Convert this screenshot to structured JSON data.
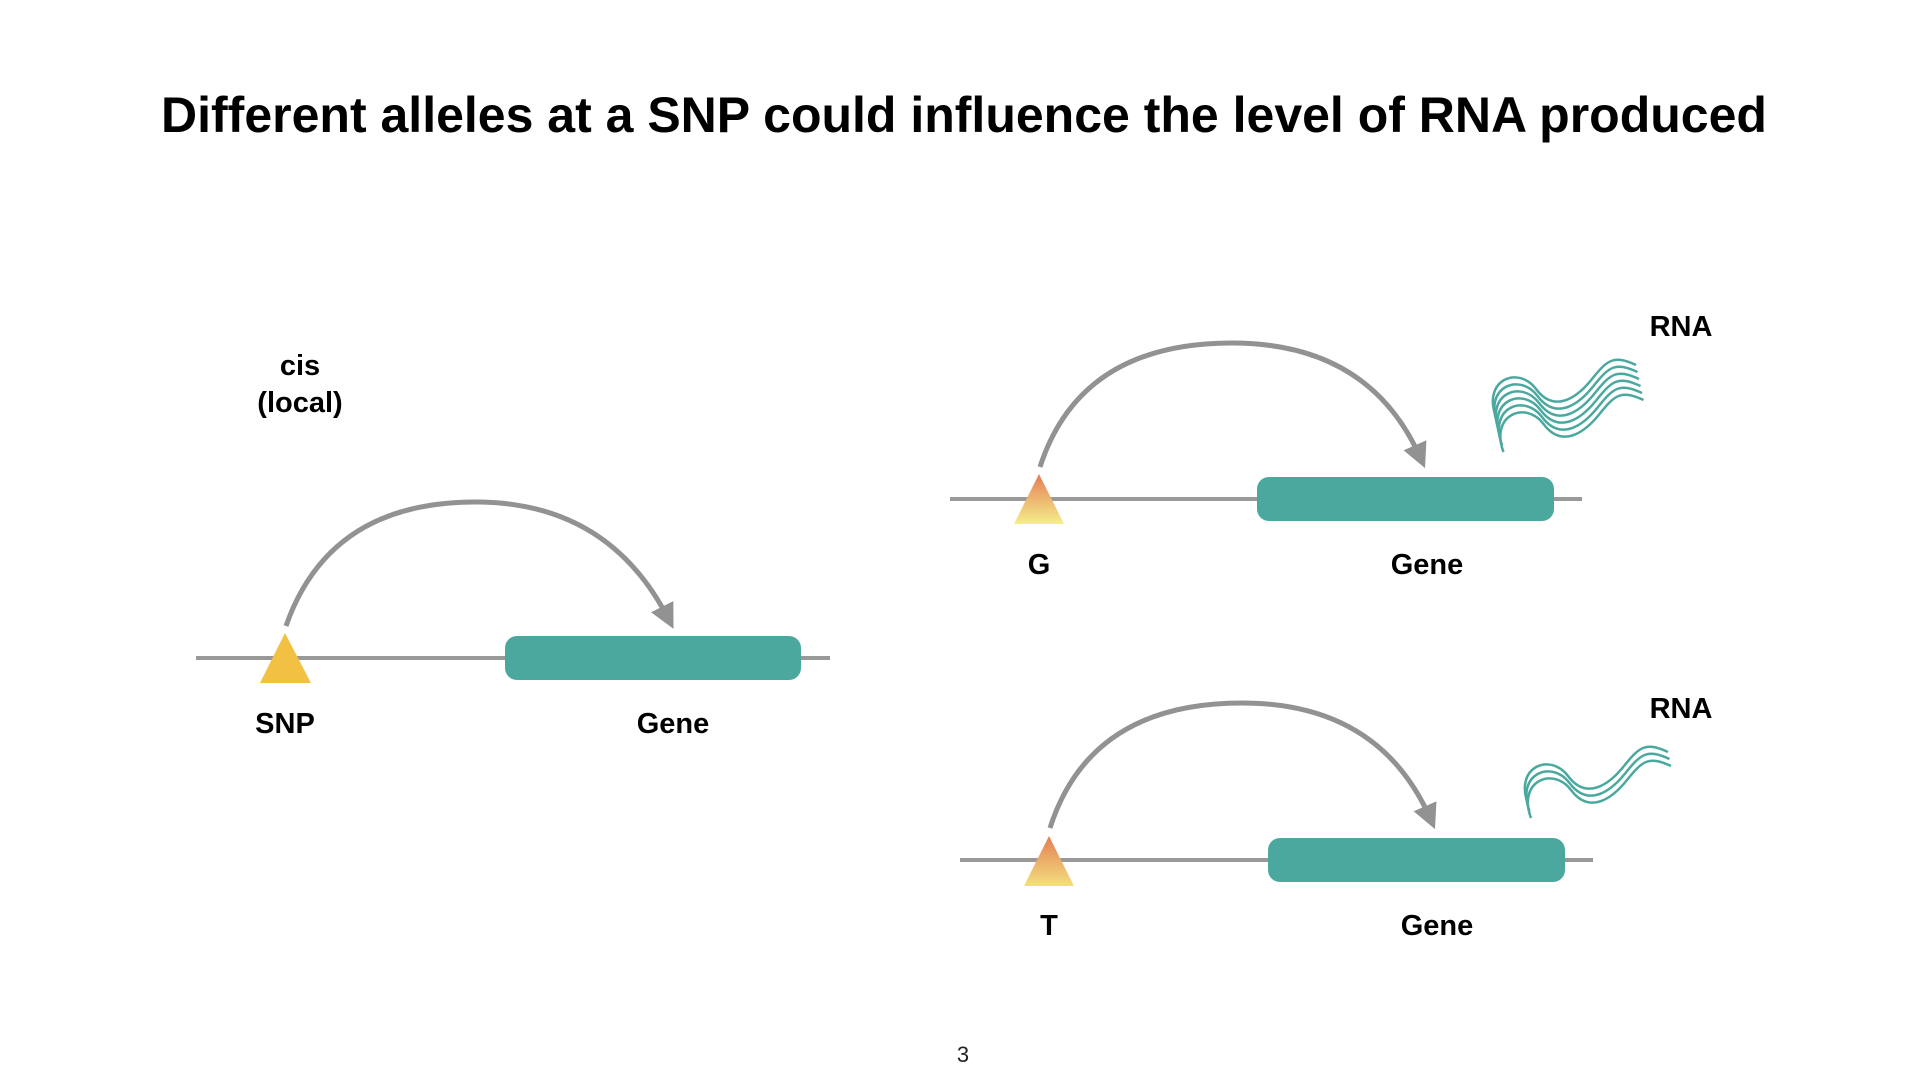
{
  "slide": {
    "title": "Different alleles at a SNP could influence the level of RNA produced",
    "page_number": "3"
  },
  "left_panel": {
    "cis_label_line1": "cis",
    "cis_label_line2": "(local)",
    "snp_label": "SNP",
    "gene_label": "Gene"
  },
  "top_right_panel": {
    "allele_label": "G",
    "gene_label": "Gene",
    "rna_label": "RNA",
    "rna_strand_count": 6
  },
  "bottom_right_panel": {
    "allele_label": "T",
    "gene_label": "Gene",
    "rna_label": "RNA",
    "rna_strand_count": 3
  },
  "colors": {
    "gene": "#4ba89e",
    "dna_line": "#999999",
    "arrow": "#929292",
    "snp": "#f2c043",
    "allele_top": "#e47d55",
    "allele_bottom": "#f5ee8a",
    "rna": "#4ba89e"
  }
}
